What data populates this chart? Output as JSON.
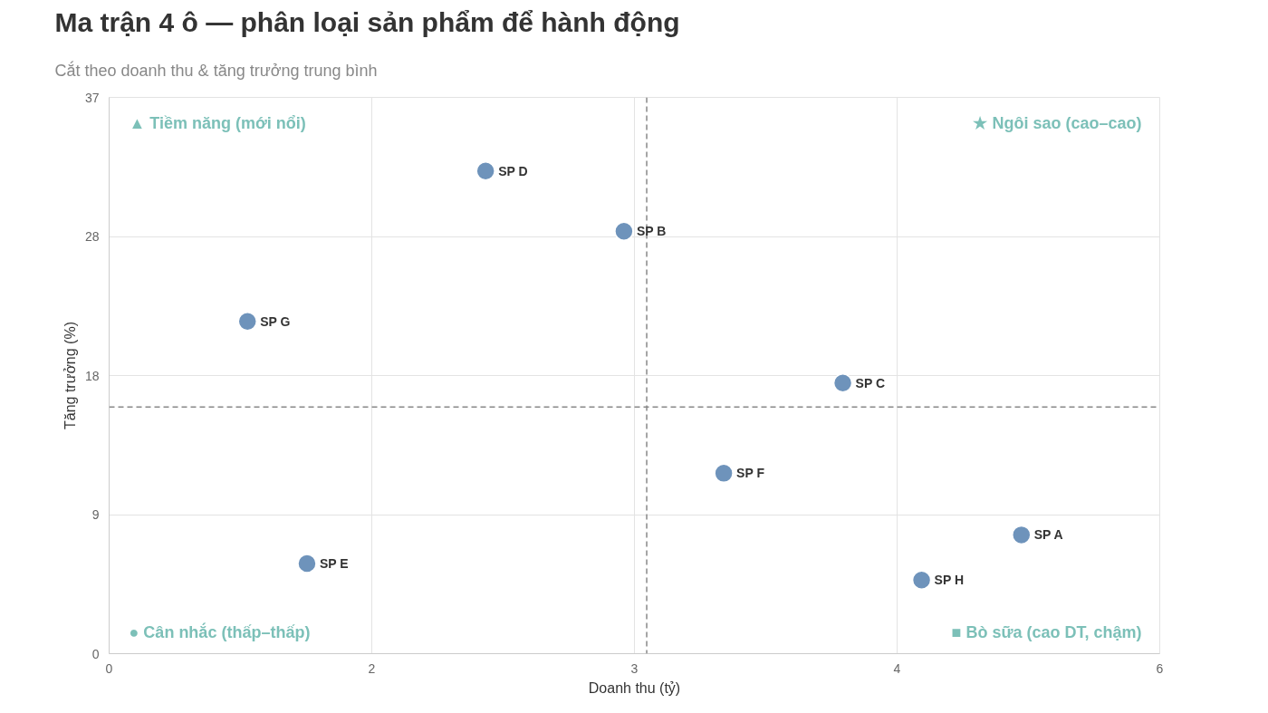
{
  "chart_data": {
    "type": "scatter",
    "title": "Ma trận 4 ô — phân loại sản phẩm để hành động",
    "subtitle": "Cắt theo doanh thu & tăng trưởng trung bình",
    "xlabel": "Doanh thu (tỷ)",
    "ylabel": "Tăng trưởng (%)",
    "xlim": [
      0,
      6
    ],
    "ylim": [
      0,
      37
    ],
    "xticks": [
      0,
      {
        "value": 1.5,
        "label": "2"
      },
      3,
      {
        "value": 4.5,
        "label": "4"
      },
      6
    ],
    "yticks": [
      0,
      {
        "value": 9.25,
        "label": "9"
      },
      {
        "value": 18.5,
        "label": "18"
      },
      {
        "value": 27.75,
        "label": "28"
      },
      37
    ],
    "grid": true,
    "marker": "circle",
    "series": [
      {
        "color": "#6e93bb",
        "x": [
          5.21,
          2.94,
          4.19,
          2.15,
          1.13,
          3.51,
          0.79,
          4.64
        ],
        "values": [
          7.9,
          28.1,
          18.0,
          32.1,
          6.0,
          12.0,
          22.1,
          4.9
        ],
        "value_labels": [
          "SP A",
          "SP B",
          "SP C",
          "SP D",
          "SP E",
          "SP F",
          "SP G",
          "SP H"
        ]
      }
    ],
    "ref_lines": [
      {
        "axis": "x",
        "value": 3.07,
        "label": null,
        "color": "#888888",
        "line_style": "dashed"
      },
      {
        "axis": "y",
        "value": 16.4,
        "label": null,
        "color": "#888888",
        "line_style": "dashed"
      }
    ],
    "annotations": [
      "▲ Tiềm năng (mới nổi)",
      "★ Ngôi sao (cao–cao)",
      "● Cân nhắc (thấp–thấp)",
      "■ Bò sữa (cao DT, chậm)"
    ]
  }
}
